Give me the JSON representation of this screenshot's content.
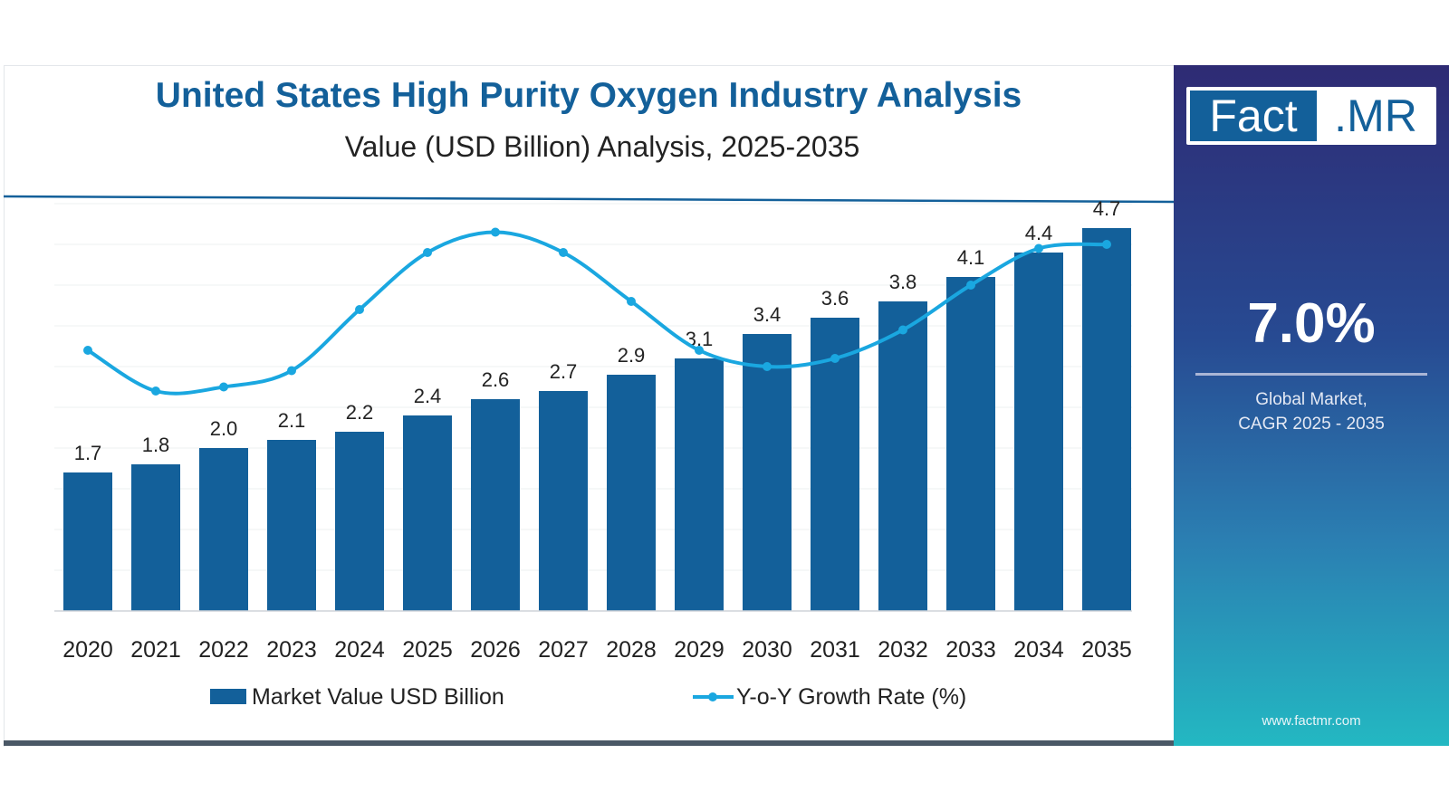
{
  "chart_data": {
    "type": "bar",
    "title": "United States High Purity Oxygen Industry Analysis",
    "subtitle": "Value (USD Billion) Analysis, 2025-2035",
    "categories": [
      "2020",
      "2021",
      "2022",
      "2023",
      "2024",
      "2025",
      "2026",
      "2027",
      "2028",
      "2029",
      "2030",
      "2031",
      "2032",
      "2033",
      "2034",
      "2035"
    ],
    "series": [
      {
        "name": "Market Value USD Billion",
        "type": "bar",
        "values": [
          1.7,
          1.8,
          2.0,
          2.1,
          2.2,
          2.4,
          2.6,
          2.7,
          2.9,
          3.1,
          3.4,
          3.6,
          3.8,
          4.1,
          4.4,
          4.7
        ],
        "color": "#13609a"
      },
      {
        "name": "Y-o-Y Growth Rate (%)",
        "type": "line",
        "values": [
          6.4,
          5.4,
          5.5,
          5.9,
          7.4,
          8.8,
          9.3,
          8.8,
          7.6,
          6.4,
          6.0,
          6.2,
          6.9,
          8.0,
          8.9,
          9.0
        ],
        "color": "#1aa7e0"
      }
    ],
    "ylim": [
      0,
      5
    ],
    "y2lim": [
      0,
      10
    ],
    "legend": "bottom",
    "grid": true
  },
  "sidebar": {
    "logo_left": "Fact",
    "logo_right": ".MR",
    "cagr_value": "7.0%",
    "cagr_label_line1": "Global Market,",
    "cagr_label_line2": "CAGR 2025 - 2035",
    "website": "www.factmr.com",
    "colors": {
      "top": "#2e2b74",
      "bottom": "#23b8c2"
    }
  }
}
